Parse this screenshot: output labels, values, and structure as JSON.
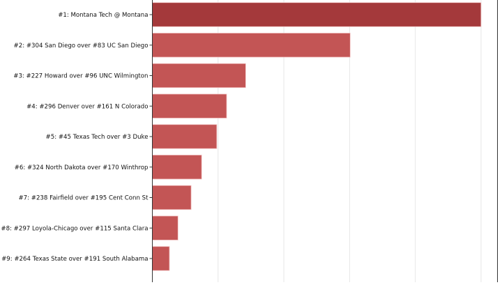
{
  "chart_data": {
    "type": "bar",
    "orientation": "horizontal",
    "categories": [
      "#1: Montana Tech @ Montana",
      "#2: #304 San Diego over #83 UC San Diego",
      "#3: #227 Howard over #96 UNC Wilmington",
      "#4: #296 Denver over #161 N Colorado",
      "#5: #45 Texas Tech over #3 Duke",
      "#6: #324 North Dakota over #170 Winthrop",
      "#7: #238 Fairfield over #195 Cent Conn St",
      "#8: #297 Loyola-Chicago over #115 Santa Clara",
      "#9: #264 Texas State over #191 South Alabama"
    ],
    "values": [
      5.0,
      3.01,
      1.42,
      1.13,
      0.98,
      0.75,
      0.59,
      0.39,
      0.26
    ],
    "xlim": [
      0,
      5.25
    ],
    "grid": true,
    "title": "",
    "xlabel": "",
    "ylabel": "",
    "colors": {
      "highlight": "#a13335",
      "bar": "#c15050",
      "grid": "#e6e6e6",
      "axis": "#333333"
    }
  }
}
